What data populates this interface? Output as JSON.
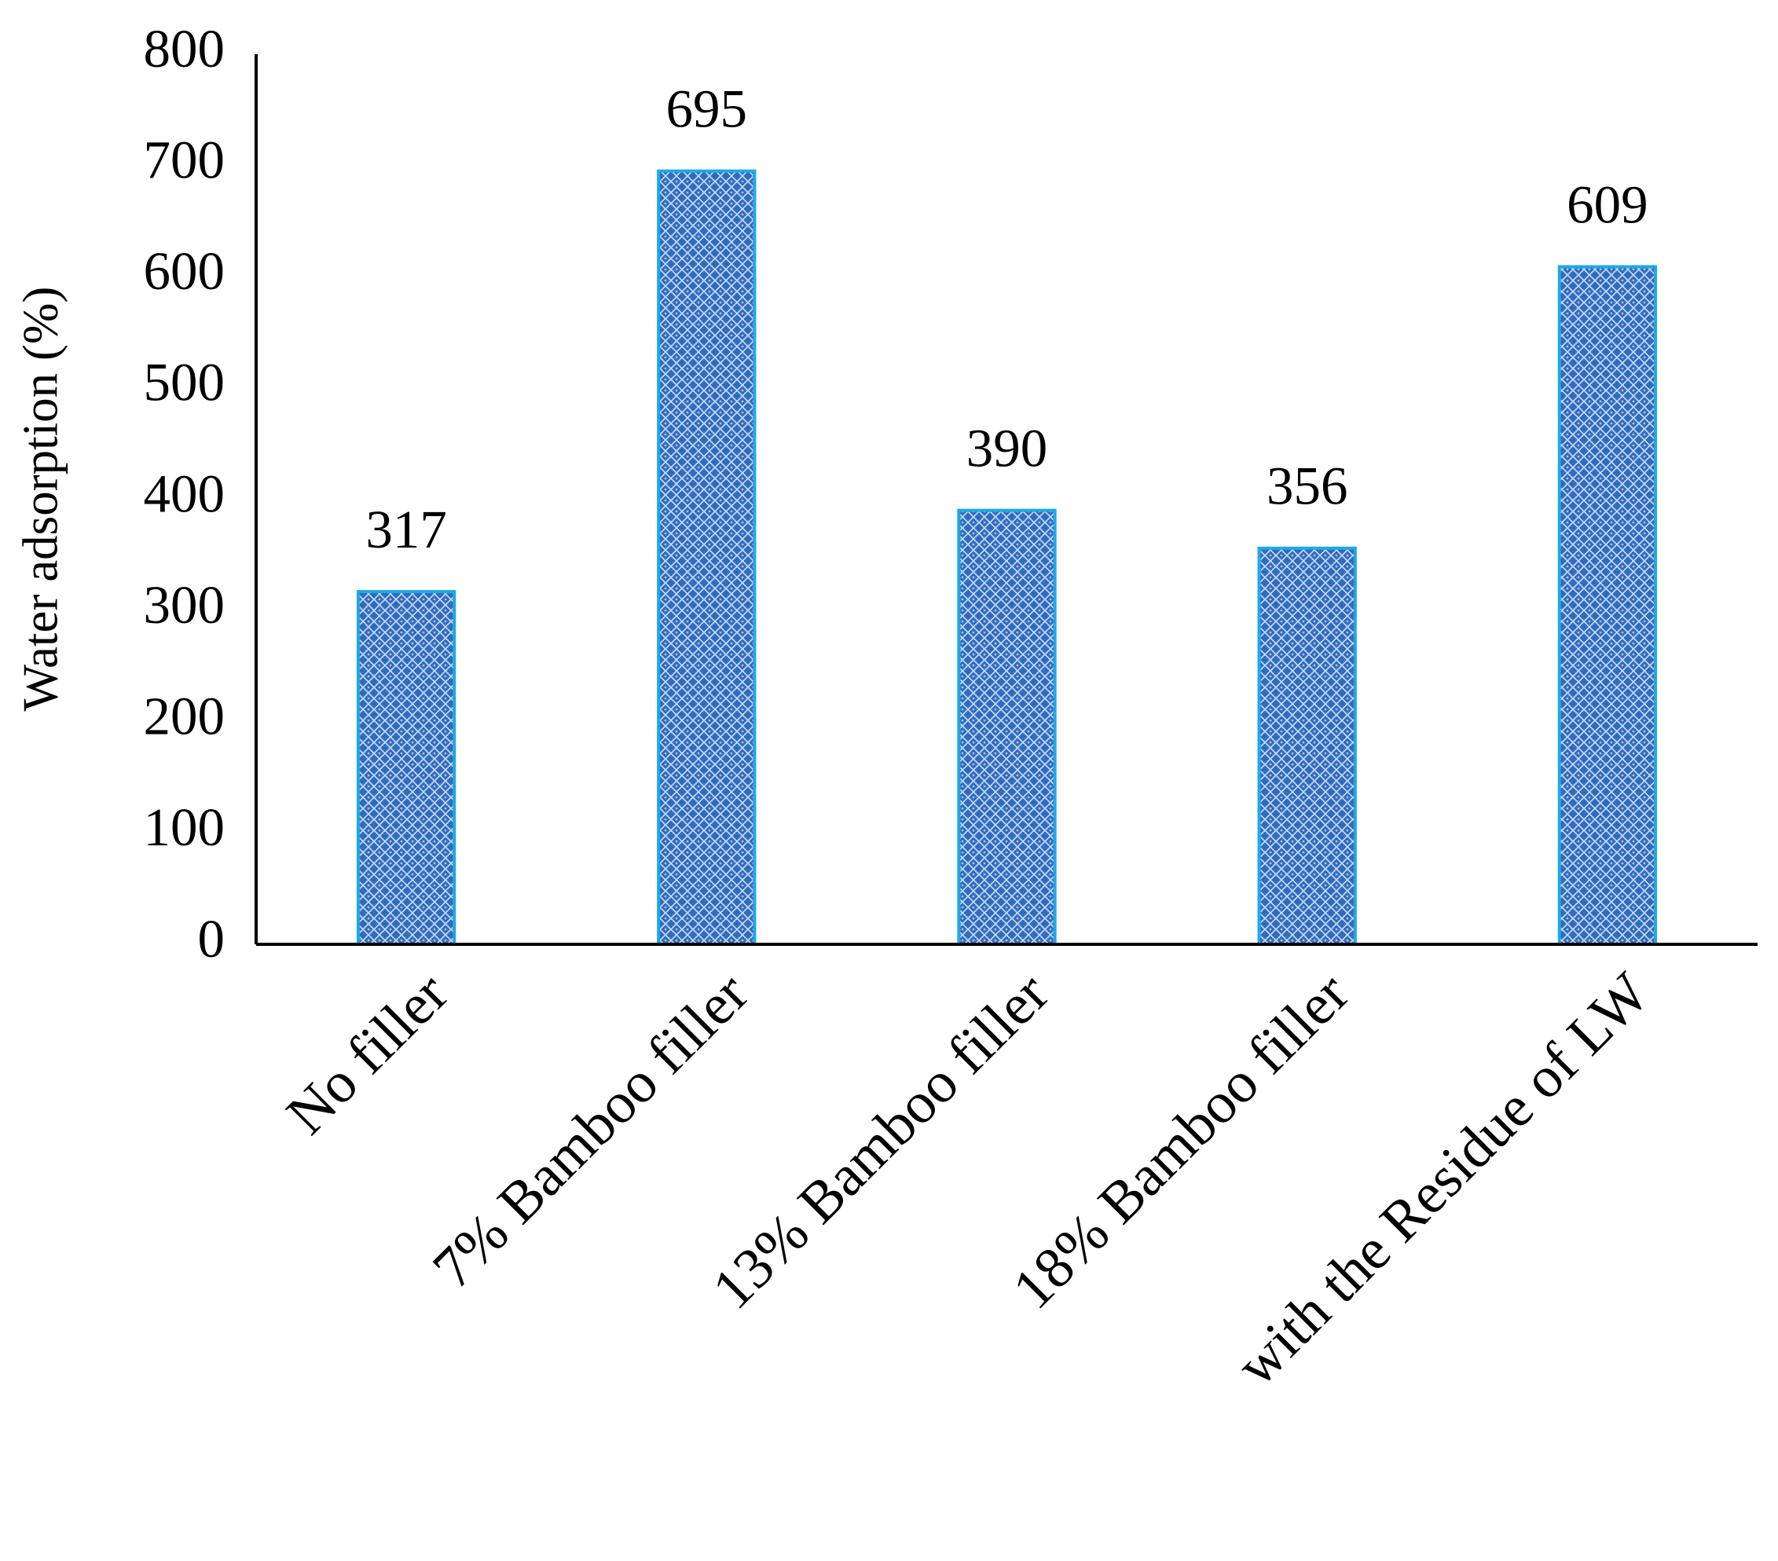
{
  "chart_data": {
    "type": "bar",
    "y_label": "Water adsorption (%)",
    "categories": [
      "No filler",
      "7% Bamboo  filler",
      "13% Bamboo  filler",
      "18% Bamboo  filler",
      "with the Residue of LW"
    ],
    "values": [
      317,
      695,
      390,
      356,
      609
    ],
    "color": "#2f6cc0",
    "edge_color": "#1ea8e6",
    "ylim": [
      0,
      800
    ],
    "yticks": [
      0,
      100,
      200,
      300,
      400,
      500,
      600,
      700,
      800
    ],
    "grid": false
  }
}
